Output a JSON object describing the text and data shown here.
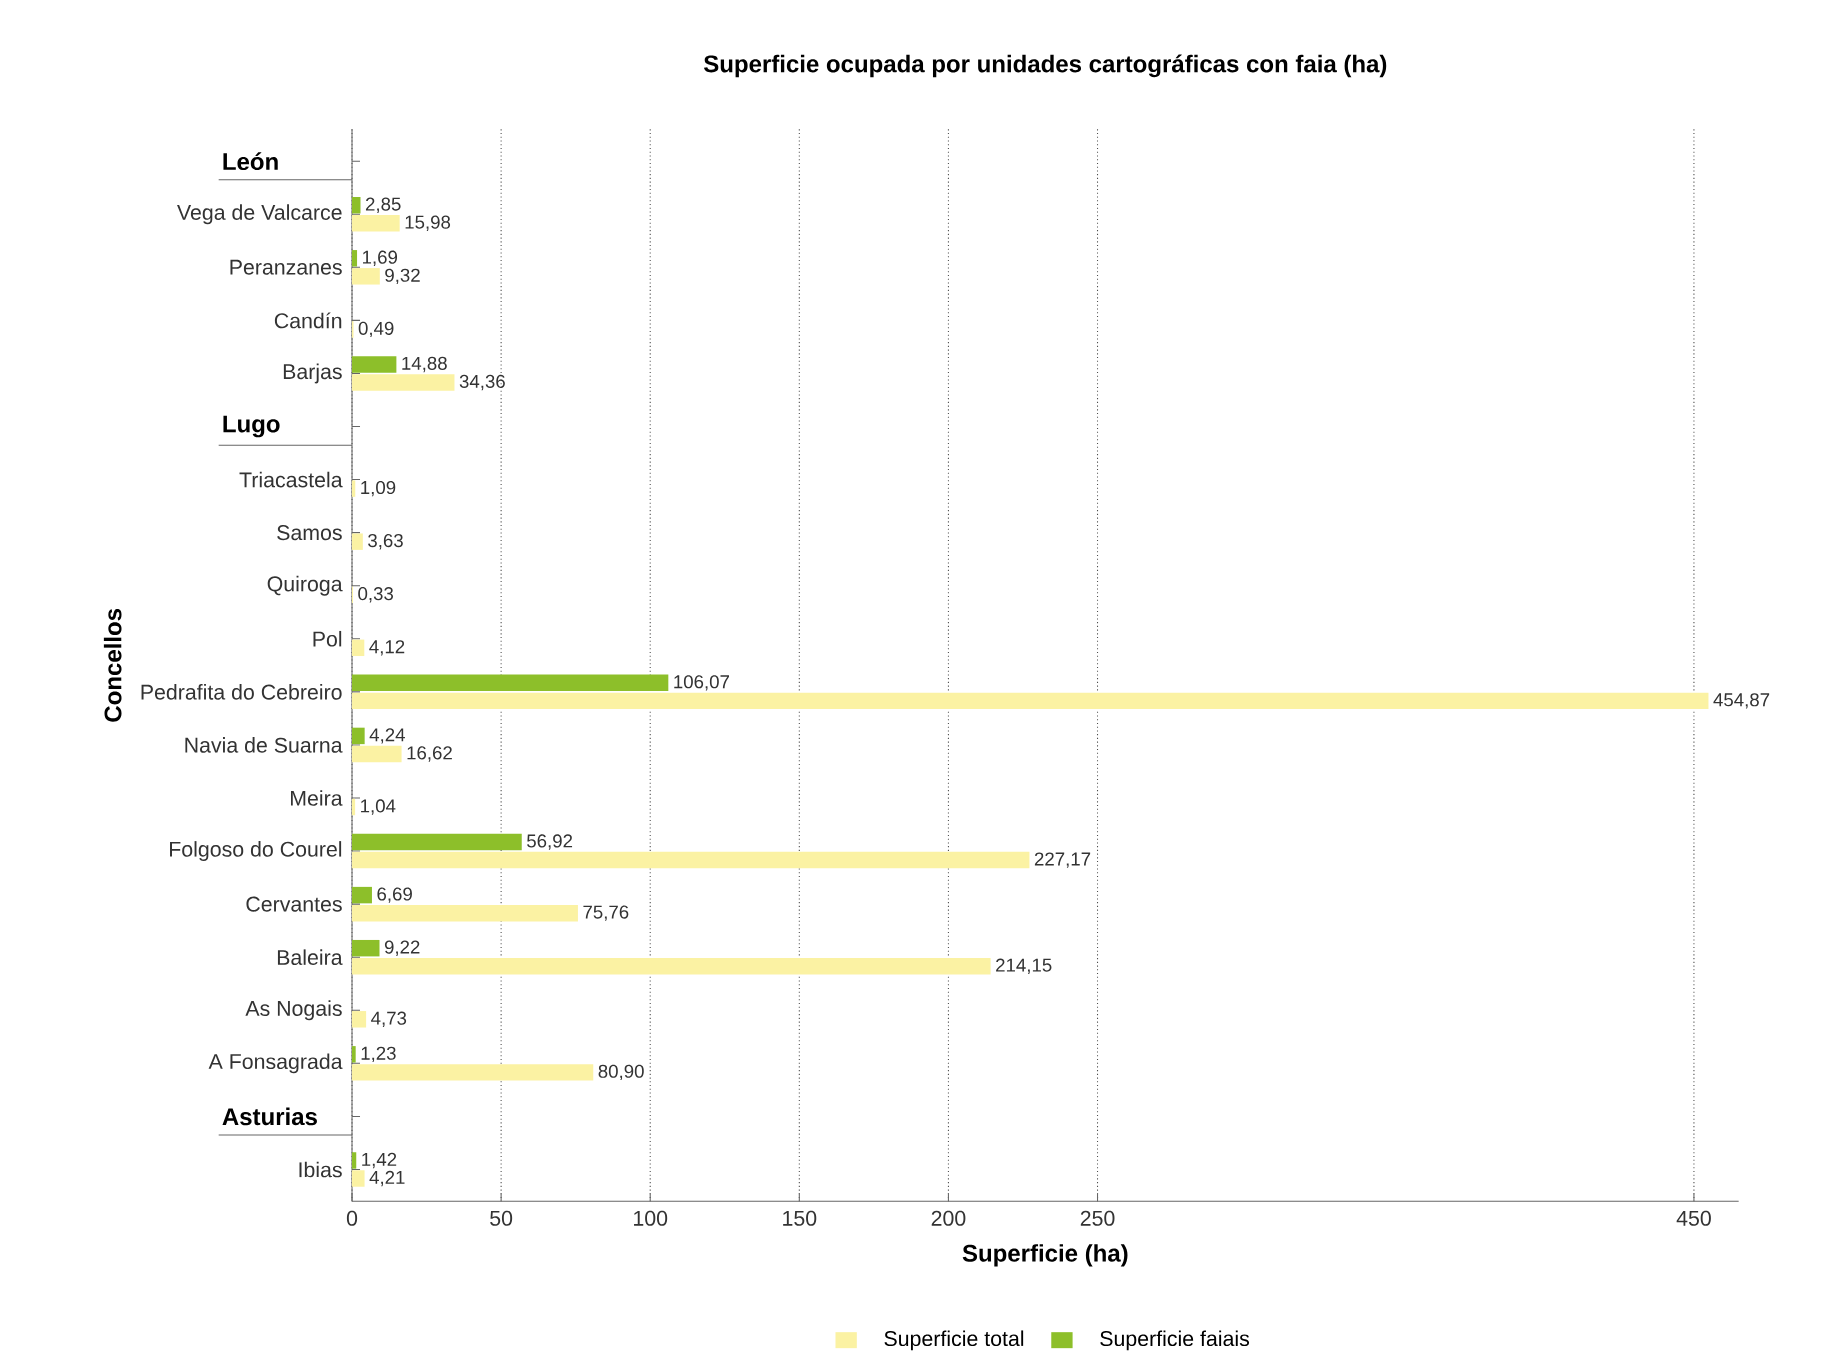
{
  "chart_data": {
    "type": "bar",
    "orientation": "horizontal",
    "title": "Superficie ocupada por unidades cartográficas con faia (ha)",
    "xlabel": "Superficie (ha)",
    "ylabel": "Concellos",
    "annotations": [
      "León",
      "Lugo",
      "Asturias"
    ],
    "categories": [
      null,
      "Vega de Valcarce",
      "Peranzanes",
      "Candín",
      "Barjas",
      null,
      "Triacastela",
      "Samos",
      "Quiroga",
      "Pol",
      "Pedrafita do Cebreiro",
      "Navia de Suarna",
      "Meira",
      "Folgoso do Courel",
      "Cervantes",
      "Baleira",
      "As Nogais",
      "A Fonsagrada",
      null,
      "Ibias"
    ],
    "series": [
      {
        "name": "Superficie total",
        "color": "#fbf2a3",
        "values": [
          null,
          15.98,
          9.32,
          0.49,
          34.36,
          null,
          1.09,
          3.63,
          0.33,
          4.12,
          454.87,
          16.62,
          1.04,
          227.17,
          75.76,
          214.15,
          4.73,
          80.9,
          null,
          4.21
        ],
        "value_labels": [
          null,
          "15,98",
          "9,32",
          "0,49",
          "34,36",
          null,
          "1,09",
          "3,63",
          "0,33",
          "4,12",
          "454,87",
          "16,62",
          "1,04",
          "227,17",
          "75,76",
          "214,15",
          "4,73",
          "80,90",
          null,
          "4,21"
        ]
      },
      {
        "name": "Superficie faiais",
        "color": "#8dbf2a",
        "values": [
          null,
          2.85,
          1.69,
          null,
          14.88,
          null,
          null,
          null,
          null,
          null,
          106.07,
          4.24,
          null,
          56.92,
          6.69,
          9.22,
          null,
          1.23,
          null,
          1.42
        ],
        "value_labels": [
          null,
          "2,85",
          "1,69",
          null,
          "14,88",
          null,
          null,
          null,
          null,
          null,
          "106,07",
          "4,24",
          null,
          "56,92",
          "6,69",
          "9,22",
          null,
          "1,23",
          null,
          "1,42"
        ]
      }
    ],
    "xlim": [
      0,
      465
    ],
    "xticks": [
      0,
      50,
      100,
      150,
      200,
      250,
      450
    ],
    "grid": "x",
    "legend": "bottom"
  }
}
